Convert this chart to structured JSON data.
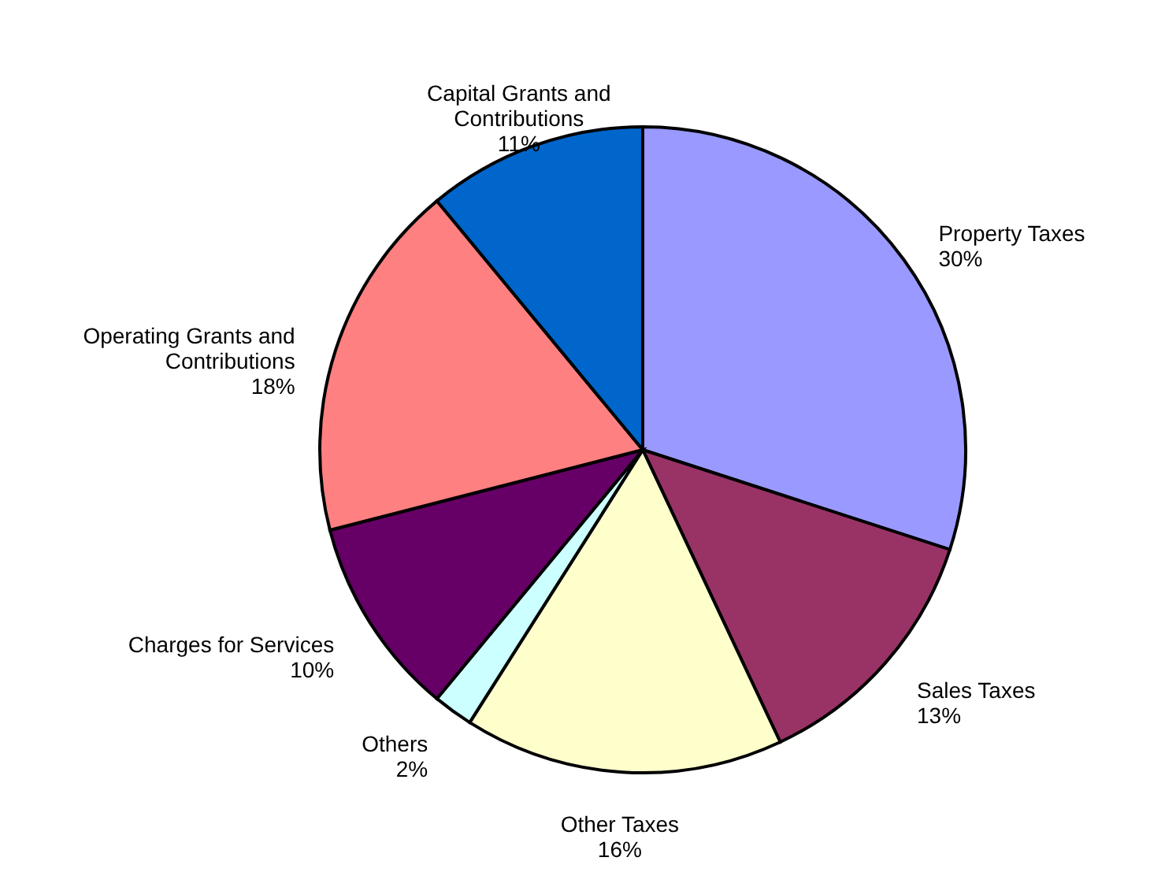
{
  "chart_data": {
    "type": "pie",
    "categories": [
      "Property Taxes",
      "Sales Taxes",
      "Other Taxes",
      "Others",
      "Charges for Services",
      "Operating Grants and Contributions",
      "Capital Grants and Contributions"
    ],
    "values": [
      30,
      13,
      16,
      2,
      10,
      18,
      11
    ],
    "value_labels": [
      "30%",
      "13%",
      "16%",
      "2%",
      "10%",
      "18%",
      "11%"
    ],
    "colors": [
      "#9999ff",
      "#993366",
      "#ffffcc",
      "#ccffff",
      "#660066",
      "#ff8080",
      "#0066cc"
    ]
  }
}
